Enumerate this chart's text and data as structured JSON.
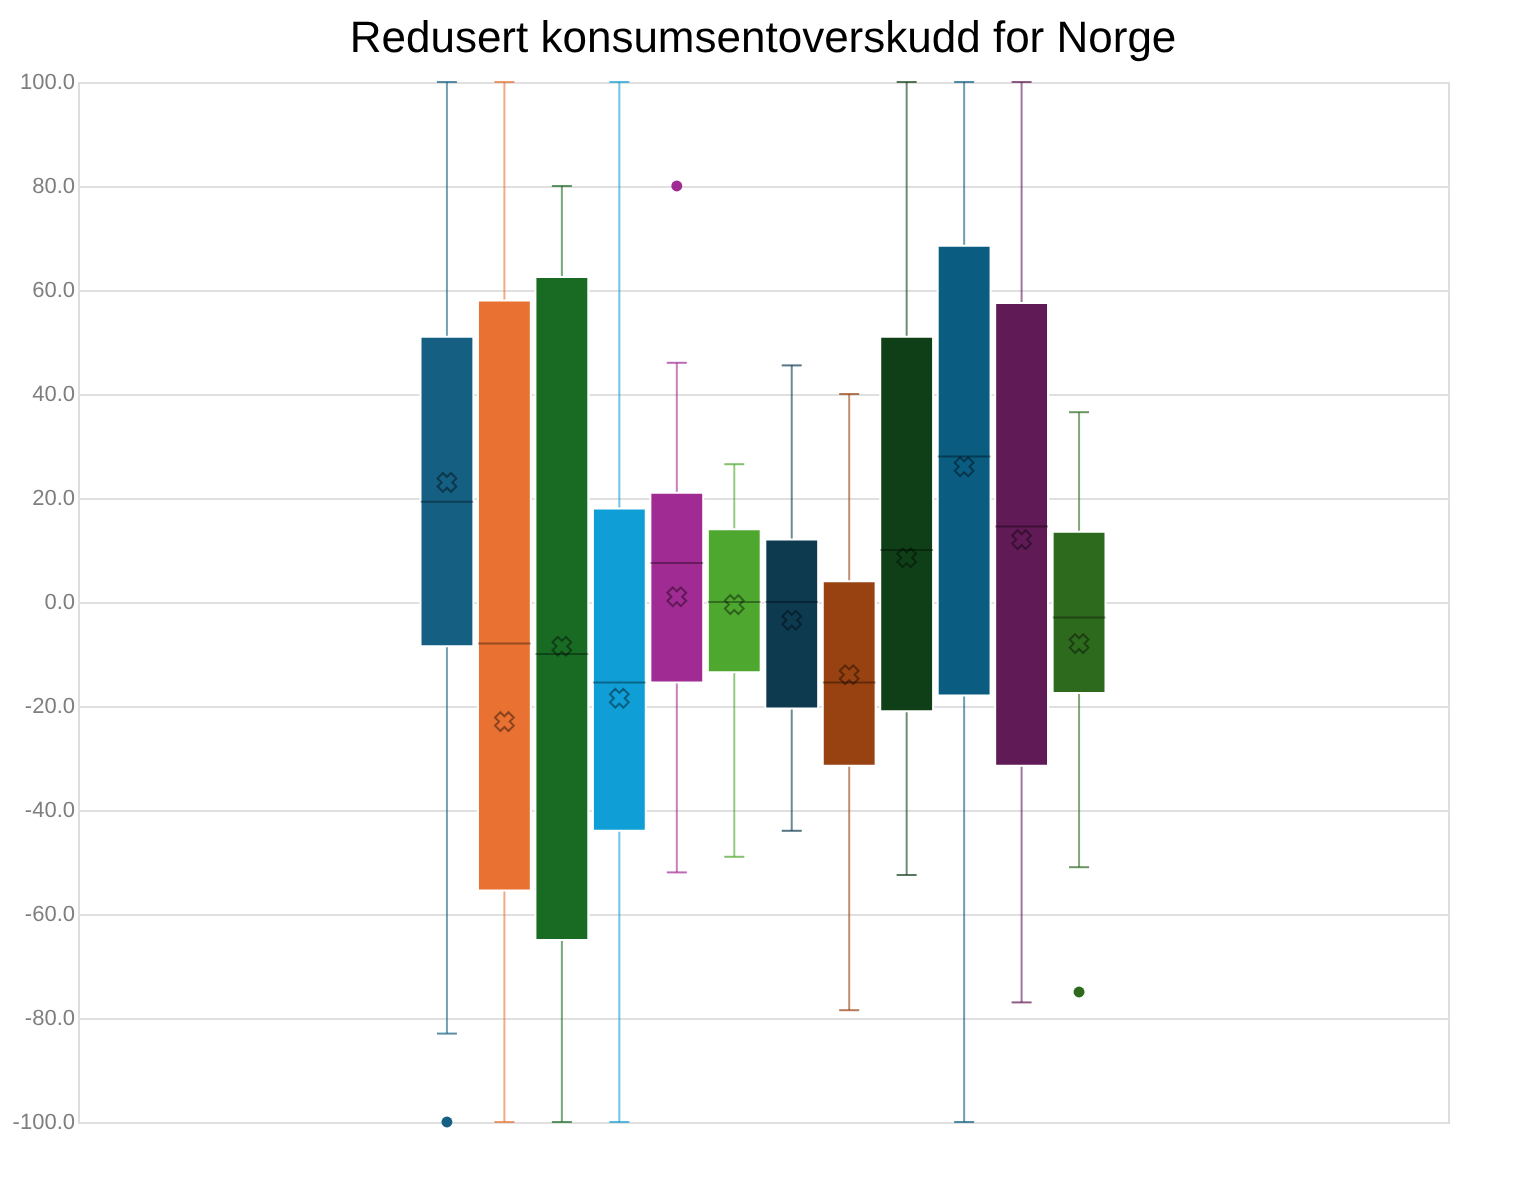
{
  "chart_data": {
    "type": "box",
    "title": "Redusert konsumsentoverskudd   for Norge",
    "categories": [
      null
    ],
    "ylim": [
      -100,
      100
    ],
    "yticks": [
      {
        "value": -100,
        "label": "-100.0"
      },
      {
        "value": -80,
        "label": "-80.0"
      },
      {
        "value": -60,
        "label": "-60.0"
      },
      {
        "value": -40,
        "label": "-40.0"
      },
      {
        "value": -20,
        "label": "-20.0"
      },
      {
        "value": 0,
        "label": "0.0"
      },
      {
        "value": 20,
        "label": "20.0"
      },
      {
        "value": 40,
        "label": "40.0"
      },
      {
        "value": 60,
        "label": "60.0"
      },
      {
        "value": 80,
        "label": "80.0"
      },
      {
        "value": 100,
        "label": "100.0"
      }
    ],
    "grid": "y",
    "tick_labels": "y",
    "marker": "cross",
    "series": [
      {
        "color": "#155f82",
        "boxes": [
          {
            "low": -83,
            "q1": -8.5,
            "median": 19.3,
            "q3": 51,
            "high": 100,
            "mean": 23,
            "outliers": [
              -100
            ]
          }
        ]
      },
      {
        "color": "#e97132",
        "boxes": [
          {
            "low": -100,
            "q1": -55.5,
            "median": -8,
            "q3": 58,
            "high": 100,
            "mean": -23
          }
        ]
      },
      {
        "color": "#196b24",
        "boxes": [
          {
            "low": -100,
            "q1": -65,
            "median": -10,
            "q3": 62.5,
            "high": 80,
            "mean": -8.5
          }
        ]
      },
      {
        "color": "#0f9ed5",
        "boxes": [
          {
            "low": -100,
            "q1": -44,
            "median": -15.5,
            "q3": 18,
            "high": 100,
            "mean": -18.5
          }
        ]
      },
      {
        "color": "#a02b93",
        "boxes": [
          {
            "low": -52,
            "q1": -15.5,
            "median": 7.5,
            "q3": 21,
            "high": 46,
            "mean": 1,
            "outliers": [
              80
            ]
          }
        ]
      },
      {
        "color": "#4ea72e",
        "boxes": [
          {
            "low": -49,
            "q1": -13.5,
            "median": 0,
            "q3": 14,
            "high": 26.5,
            "mean": -0.5
          }
        ]
      },
      {
        "color": "#0e3a50",
        "boxes": [
          {
            "low": -44,
            "q1": -20.5,
            "median": 0,
            "q3": 12,
            "high": 45.5,
            "mean": -3.5
          }
        ]
      },
      {
        "color": "#974210",
        "boxes": [
          {
            "low": -78.5,
            "q1": -31.5,
            "median": -15.5,
            "q3": 4,
            "high": 40,
            "mean": -14
          }
        ]
      },
      {
        "color": "#0f3f16",
        "boxes": [
          {
            "low": -52.5,
            "q1": -21,
            "median": 10,
            "q3": 51,
            "high": 100,
            "mean": 8.5
          }
        ]
      },
      {
        "color": "#0a5c80",
        "boxes": [
          {
            "low": -100,
            "q1": -18,
            "median": 28,
            "q3": 68.5,
            "high": 100,
            "mean": 26
          }
        ]
      },
      {
        "color": "#601a56",
        "boxes": [
          {
            "low": -77,
            "q1": -31.5,
            "median": 14.5,
            "q3": 57.5,
            "high": 100,
            "mean": 12
          }
        ]
      },
      {
        "color": "#2e6a1e",
        "boxes": [
          {
            "low": -51,
            "q1": -17.5,
            "median": -3,
            "q3": 13.5,
            "high": 36.5,
            "mean": -8,
            "outliers": [
              -75
            ]
          }
        ]
      }
    ]
  }
}
